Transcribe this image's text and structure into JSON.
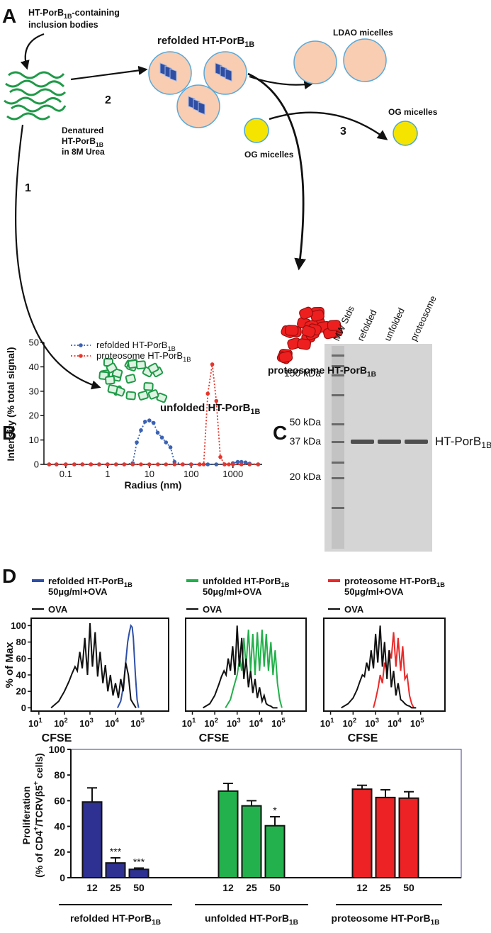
{
  "panel_a": {
    "label": "A",
    "inclusion_bodies": [
      [
        "HT-PorB",
        "1B",
        "-containing"
      ],
      [
        "inclusion bodies"
      ]
    ],
    "refolded": [
      "refolded HT-PorB",
      "1B"
    ],
    "step_2": "2",
    "denatured": [
      [
        "Denatured"
      ],
      [
        "HT-PorB",
        "1B"
      ],
      [
        "in 8M Urea"
      ]
    ],
    "step_1": "1",
    "ldao_micelles": "LDAO micelles",
    "step_3": "3",
    "og_micelles_out": "OG micelles",
    "og_micelles_in": "OG micelles",
    "proteosome": [
      "proteosome HT-PorB",
      "1B"
    ],
    "unfolded": [
      "unfolded HT-PorB",
      "1B"
    ]
  },
  "panel_c": {
    "label": "C",
    "lanes": [
      "MW Stds",
      "refolded",
      "unfolded",
      "proteosome"
    ],
    "markers": [
      "150 kDa",
      "50 kDa",
      "37 kDa",
      "20 kDa"
    ],
    "band_label": [
      "HT-PorB",
      "1B"
    ]
  },
  "chart_data": [
    {
      "panel": "B",
      "type": "line",
      "xscale": "log",
      "xlabel": "Radius (nm)",
      "ylabel": "Intensity (% total signal)",
      "xlim": [
        0.03,
        5000
      ],
      "ylim": [
        0,
        50
      ],
      "xticks": [
        0.1,
        1,
        10,
        100,
        1000
      ],
      "yticks": [
        0,
        10,
        20,
        30,
        40,
        50
      ],
      "legend": "upper left",
      "markers": true,
      "series": [
        {
          "name": [
            "refolded HT-PorB",
            "1B"
          ],
          "color": "#3a62b4",
          "x": [
            0.04,
            0.06,
            0.1,
            0.16,
            0.25,
            0.4,
            0.63,
            1,
            1.6,
            2.5,
            4,
            5,
            6.3,
            7.9,
            10,
            12.6,
            15.8,
            20,
            25,
            32,
            40,
            63,
            100,
            160,
            250,
            400,
            630,
            1000,
            1300,
            1600,
            2000,
            2500,
            4000
          ],
          "values": [
            0,
            0,
            0,
            0,
            0,
            0,
            0,
            0,
            0,
            0,
            0.5,
            9,
            14,
            17.5,
            18,
            17,
            13,
            11,
            9,
            7,
            1,
            0,
            0,
            0,
            0,
            0,
            0,
            0.5,
            1,
            1,
            0.8,
            0.3,
            0
          ]
        },
        {
          "name": [
            "proteosome HT-PorB",
            "1B"
          ],
          "color": "#e8352b",
          "x": [
            0.04,
            0.06,
            0.1,
            0.16,
            0.25,
            0.4,
            0.63,
            1,
            1.6,
            2.5,
            4,
            6.3,
            10,
            16,
            25,
            40,
            63,
            100,
            160,
            200,
            250,
            320,
            400,
            500,
            630,
            800,
            1000,
            1600,
            2500,
            4000
          ],
          "values": [
            0,
            0,
            0,
            0,
            0,
            0,
            0,
            0,
            0,
            0,
            0,
            0,
            0,
            0,
            0,
            0,
            0,
            0,
            0,
            0,
            29,
            41,
            26,
            3,
            0,
            0,
            0,
            0,
            0,
            0
          ]
        }
      ]
    },
    {
      "panel": "D",
      "type": "line",
      "xscale": "log",
      "xlabel": "CFSE",
      "ylabel": "% of Max",
      "xlim": [
        5,
        1200000
      ],
      "ylim": [
        -4,
        109
      ],
      "xticks": [
        {
          "value": 10,
          "label": [
            "10",
            "1"
          ]
        },
        {
          "value": 100,
          "label": [
            "10",
            "2"
          ]
        },
        {
          "value": 1000,
          "label": [
            "10",
            "3"
          ]
        },
        {
          "value": 10000,
          "label": [
            "10",
            "4"
          ]
        },
        {
          "value": 100000,
          "label": [
            "10",
            "5"
          ]
        }
      ],
      "yticks": [
        0,
        20,
        40,
        60,
        80,
        100
      ],
      "series": [
        {
          "name": [
            "refolded HT-PorB",
            "1B"
          ],
          "dose": "50µg/ml+OVA",
          "color": "#2e4fa8",
          "x": [
            12000,
            16000,
            20000,
            25000,
            30000,
            35000,
            40000,
            45000,
            50000,
            60000,
            70000,
            80000
          ],
          "values": [
            0,
            8,
            25,
            55,
            80,
            92,
            100,
            98,
            85,
            40,
            10,
            0
          ]
        },
        {
          "name": [
            "OVA"
          ],
          "color": "#111111",
          "x": [
            30,
            60,
            100,
            150,
            200,
            260,
            320,
            400,
            500,
            630,
            800,
            1000,
            1250,
            1600,
            2000,
            2500,
            3200,
            4000,
            5000,
            6300,
            8000,
            10000,
            13000,
            16000,
            20000,
            25000,
            32000,
            40000,
            50000,
            63000
          ],
          "values": [
            0,
            8,
            20,
            32,
            42,
            50,
            45,
            68,
            48,
            85,
            40,
            103,
            50,
            92,
            38,
            68,
            30,
            52,
            20,
            40,
            15,
            30,
            12,
            35,
            20,
            55,
            40,
            10,
            5,
            0
          ]
        }
      ]
    },
    {
      "type": "line",
      "xscale": "log",
      "xlabel": "CFSE",
      "xlim": [
        5,
        1200000
      ],
      "ylim": [
        -4,
        109
      ],
      "xticks": [
        {
          "value": 10,
          "label": [
            "10",
            "1"
          ]
        },
        {
          "value": 100,
          "label": [
            "10",
            "2"
          ]
        },
        {
          "value": 1000,
          "label": [
            "10",
            "3"
          ]
        },
        {
          "value": 10000,
          "label": [
            "10",
            "4"
          ]
        },
        {
          "value": 100000,
          "label": [
            "10",
            "5"
          ]
        }
      ],
      "series": [
        {
          "name": [
            "unfolded HT-PorB",
            "1B"
          ],
          "dose": "50µg/ml+OVA",
          "color": "#22b04a",
          "x": [
            300,
            500,
            700,
            1000,
            1300,
            1600,
            2000,
            2500,
            3200,
            4000,
            5000,
            6300,
            8000,
            10000,
            13000,
            16000,
            20000,
            25000,
            32000,
            40000,
            50000,
            63000,
            80000,
            100000
          ],
          "values": [
            0,
            10,
            25,
            40,
            60,
            45,
            85,
            50,
            95,
            45,
            90,
            40,
            92,
            45,
            95,
            50,
            90,
            45,
            80,
            40,
            70,
            30,
            10,
            0
          ]
        },
        {
          "name": [
            "OVA"
          ],
          "color": "#111111",
          "x": [
            30,
            60,
            100,
            150,
            200,
            260,
            320,
            400,
            500,
            630,
            800,
            1000,
            1250,
            1600,
            2000,
            2500,
            3200,
            4000,
            5000,
            6300,
            8000,
            10000,
            13000,
            16000,
            20000,
            25000,
            32000,
            40000,
            50000,
            63000
          ],
          "values": [
            0,
            5,
            15,
            28,
            38,
            45,
            40,
            60,
            45,
            75,
            40,
            100,
            50,
            85,
            35,
            60,
            25,
            45,
            18,
            35,
            12,
            25,
            8,
            15,
            5,
            3,
            2,
            0,
            0,
            0
          ]
        }
      ]
    },
    {
      "type": "line",
      "xscale": "log",
      "xlabel": "CFSE",
      "xlim": [
        5,
        1200000
      ],
      "ylim": [
        -4,
        109
      ],
      "xticks": [
        {
          "value": 10,
          "label": [
            "10",
            "1"
          ]
        },
        {
          "value": 100,
          "label": [
            "10",
            "2"
          ]
        },
        {
          "value": 1000,
          "label": [
            "10",
            "3"
          ]
        },
        {
          "value": 10000,
          "label": [
            "10",
            "4"
          ]
        },
        {
          "value": 100000,
          "label": [
            "10",
            "5"
          ]
        }
      ],
      "series": [
        {
          "name": [
            "proteosome HT-PorB",
            "1B"
          ],
          "dose": "50µg/ml+OVA",
          "color": "#ea2a2a",
          "x": [
            800,
            1000,
            1300,
            1600,
            2000,
            2500,
            3200,
            4000,
            5000,
            6300,
            8000,
            10000,
            13000,
            16000,
            20000,
            25000,
            32000,
            40000,
            50000
          ],
          "values": [
            0,
            10,
            25,
            40,
            30,
            55,
            45,
            70,
            60,
            92,
            50,
            85,
            45,
            75,
            35,
            40,
            15,
            5,
            0
          ]
        },
        {
          "name": [
            "OVA"
          ],
          "color": "#111111",
          "x": [
            30,
            60,
            100,
            150,
            200,
            260,
            320,
            400,
            500,
            630,
            800,
            1000,
            1250,
            1600,
            2000,
            2500,
            3200,
            4000,
            5000,
            6300,
            8000,
            10000,
            13000,
            16000,
            20000,
            25000,
            32000,
            40000,
            50000,
            63000
          ],
          "values": [
            0,
            5,
            12,
            22,
            32,
            40,
            38,
            55,
            45,
            70,
            48,
            90,
            55,
            100,
            50,
            80,
            35,
            70,
            25,
            45,
            15,
            30,
            10,
            8,
            5,
            3,
            2,
            0,
            0,
            0
          ]
        }
      ]
    },
    {
      "type": "bar",
      "ylabel": [
        "Proliferation"
      ],
      "ylabel_2": [
        "(% of CD4",
        "+",
        "/TCRVβ5",
        "+",
        " cells)"
      ],
      "ylim": [
        0,
        100
      ],
      "yticks": [
        0,
        20,
        40,
        60,
        80,
        100
      ],
      "series": [
        {
          "name": [
            "refolded HT-PorB",
            "1B"
          ],
          "color": "#2e3192",
          "categories": [
            "12",
            "25",
            "50"
          ],
          "values": [
            59,
            11.5,
            6.5
          ],
          "errors": [
            11,
            4,
            1
          ],
          "annotations": [
            null,
            "***",
            "***"
          ]
        },
        {
          "name": [
            "unfolded HT-PorB",
            "1B"
          ],
          "color": "#22b14c",
          "categories": [
            "12",
            "25",
            "50"
          ],
          "values": [
            67.5,
            56,
            40.5
          ],
          "errors": [
            6,
            4,
            7
          ],
          "annotations": [
            null,
            null,
            "*"
          ]
        },
        {
          "name": [
            "proteosome HT-PorB",
            "1B"
          ],
          "color": "#ed2224",
          "categories": [
            "12",
            "25",
            "50"
          ],
          "values": [
            69,
            62.5,
            62
          ],
          "errors": [
            3,
            6,
            5
          ],
          "annotations": [
            null,
            null,
            null
          ]
        }
      ]
    }
  ]
}
